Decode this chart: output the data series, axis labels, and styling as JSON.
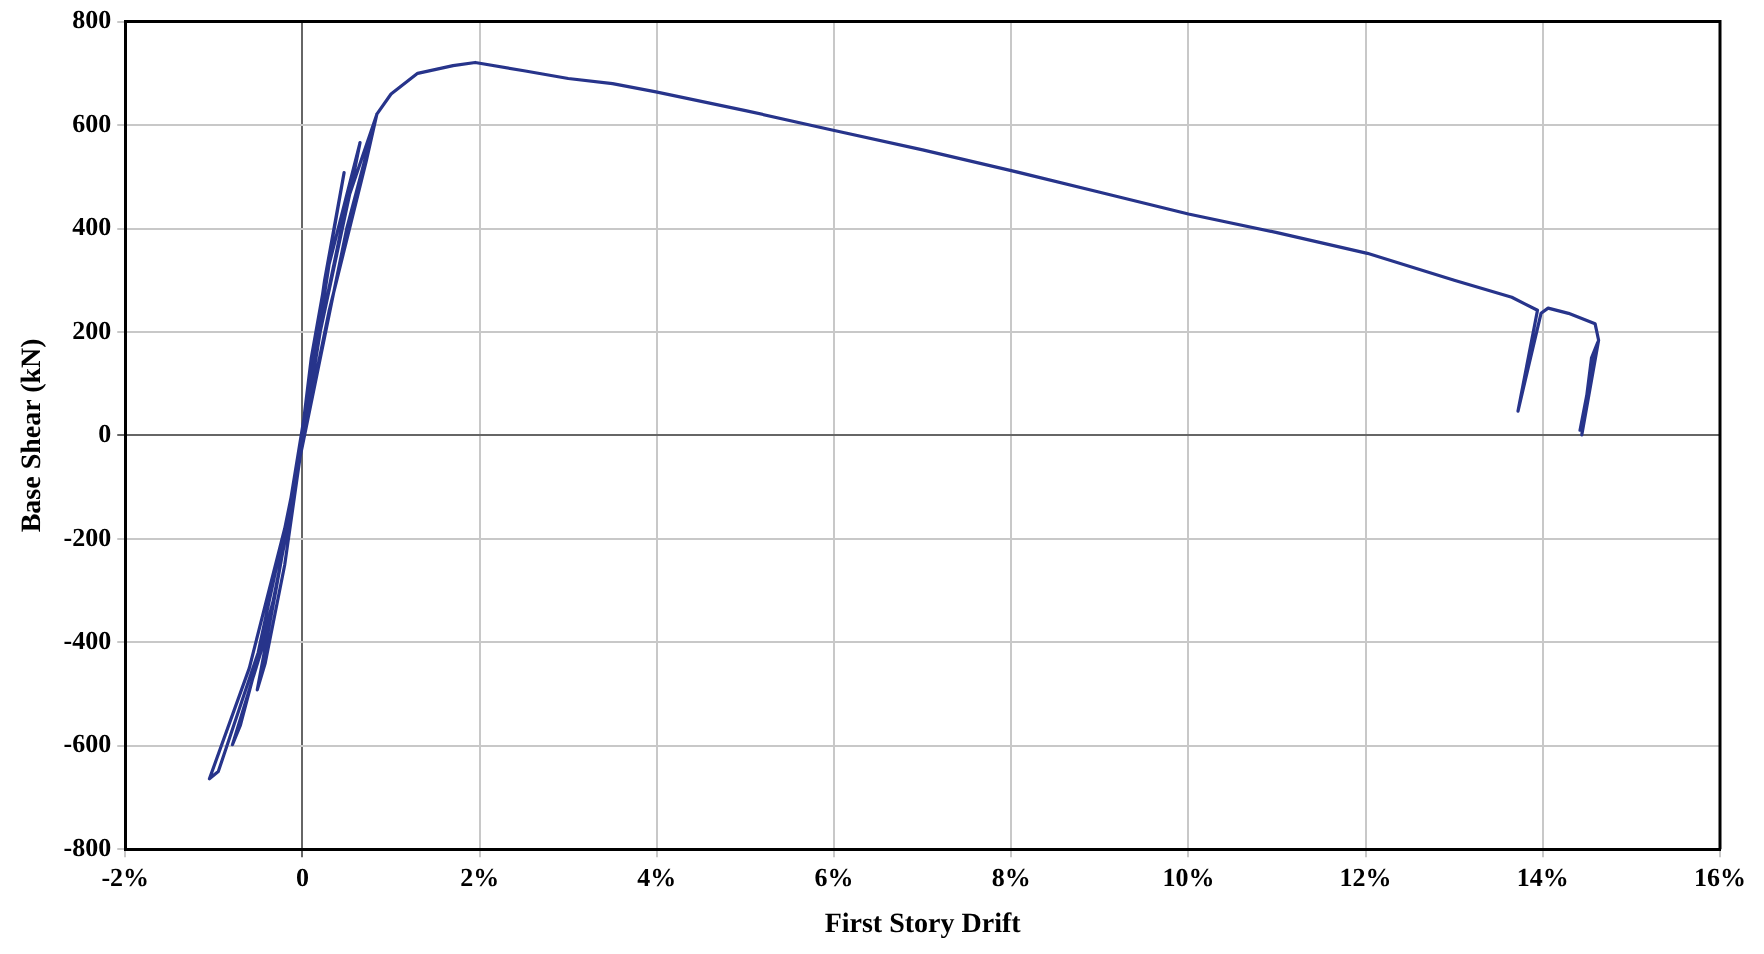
{
  "chart_data": {
    "type": "line",
    "xlabel": "First Story Drift",
    "ylabel": "Base Shear (kN)",
    "xlim": [
      -2,
      16
    ],
    "ylim": [
      -800,
      800
    ],
    "xticks": [
      {
        "value": -2,
        "label": "-2%"
      },
      0,
      {
        "value": 2,
        "label": "2%"
      },
      {
        "value": 4,
        "label": "4%"
      },
      {
        "value": 6,
        "label": "6%"
      },
      {
        "value": 8,
        "label": "8%"
      },
      {
        "value": 10,
        "label": "10%"
      },
      {
        "value": 12,
        "label": "12%"
      },
      {
        "value": 14,
        "label": "14%"
      },
      {
        "value": 16,
        "label": "16%"
      }
    ],
    "yticks": [
      -800,
      -600,
      -400,
      -200,
      0,
      200,
      400,
      600,
      800
    ],
    "grid": true,
    "marker": "none",
    "line_style": "solid",
    "series": [
      {
        "color": "#27348b",
        "x": [
          0,
          0.25,
          0.47,
          0.38,
          0.1,
          -0.05,
          -0.3,
          -0.51,
          -0.42,
          -0.2,
          0.05,
          0.3,
          0.65,
          0.55,
          0.2,
          -0.1,
          -0.4,
          -0.79,
          -0.7,
          -0.3,
          0.1,
          0.5,
          0.84,
          0.72,
          0.3,
          -0.2,
          -0.6,
          -1.05,
          -0.95,
          -0.5,
          0,
          0.5,
          0.84,
          1.0,
          1.3,
          1.7,
          1.95,
          2.5,
          3.0,
          3.5,
          3.99,
          5.0,
          5.99,
          7.0,
          8.0,
          9.0,
          10.0,
          11.0,
          12.02,
          13.0,
          13.65,
          13.94,
          13.72,
          13.98,
          14.06,
          14.29,
          14.59,
          14.63,
          14.44,
          14.55,
          14.62,
          14.42,
          14.6,
          14.63
        ],
        "values": [
          0,
          300,
          508,
          420,
          150,
          -60,
          -300,
          -492,
          -440,
          -250,
          50,
          330,
          566,
          480,
          200,
          -120,
          -380,
          -598,
          -560,
          -300,
          120,
          450,
          621,
          530,
          240,
          -180,
          -450,
          -664,
          -650,
          -420,
          -20,
          400,
          621,
          660,
          700,
          715,
          721,
          705,
          690,
          680,
          664,
          628,
          590,
          552,
          512,
          470,
          428,
          392,
          352,
          300,
          267,
          242,
          47,
          236,
          246,
          236,
          216,
          184,
          1,
          150,
          180,
          10,
          170,
          184
        ]
      }
    ]
  }
}
